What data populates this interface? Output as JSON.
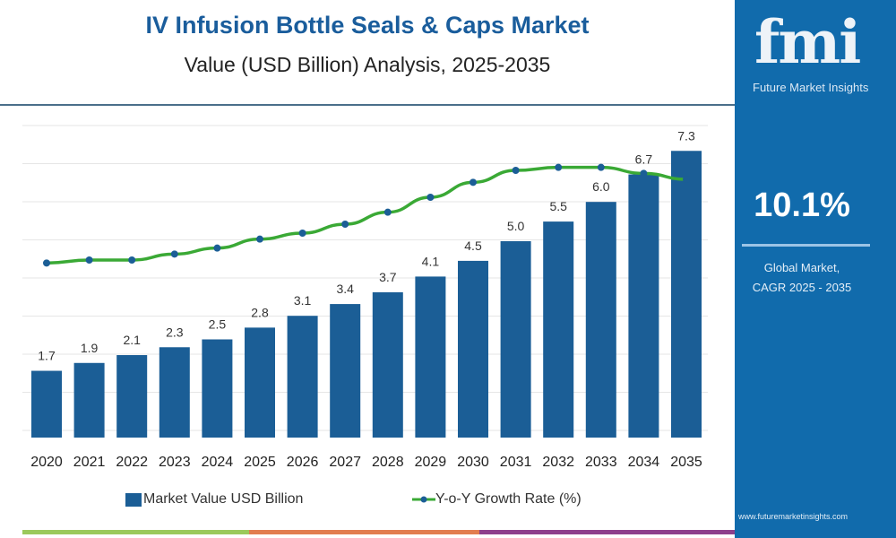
{
  "header": {
    "title": "IV Infusion Bottle Seals & Caps Market",
    "subtitle": "Value (USD Billion) Analysis, 2025-2035"
  },
  "sidebar": {
    "logo_text": "fmi",
    "logo_caption": "Future Market Insights",
    "cagr_value": "10.1%",
    "cagr_label_1": "Global Market,",
    "cagr_label_2": "CAGR 2025 - 2035",
    "url": "www.futuremarketinsights.com",
    "background": "#116bac"
  },
  "legend": {
    "bar": "Market Value USD Billion",
    "line": "Y-o-Y Growth Rate (%)"
  },
  "chart_data": {
    "type": "bar",
    "categories": [
      "2020",
      "2021",
      "2022",
      "2023",
      "2024",
      "2025",
      "2026",
      "2027",
      "2028",
      "2029",
      "2030",
      "2031",
      "2032",
      "2033",
      "2034",
      "2035"
    ],
    "series": [
      {
        "name": "Market Value USD Billion",
        "type": "bar",
        "color": "#1b5e96",
        "values": [
          1.7,
          1.9,
          2.1,
          2.3,
          2.5,
          2.8,
          3.1,
          3.4,
          3.7,
          4.1,
          4.5,
          5.0,
          5.5,
          6.0,
          6.7,
          7.3
        ],
        "labels": [
          "1.7",
          "1.9",
          "2.1",
          "2.3",
          "2.5",
          "2.8",
          "3.1",
          "3.4",
          "3.7",
          "4.1",
          "4.5",
          "5.0",
          "5.5",
          "6.0",
          "6.7",
          "7.3"
        ]
      },
      {
        "name": "Y-o-Y Growth Rate (%)",
        "type": "line",
        "color": "#3aa935",
        "marker_color": "#1b5e96",
        "values": [
          7.2,
          7.3,
          7.3,
          7.5,
          7.7,
          8.0,
          8.2,
          8.5,
          8.9,
          9.4,
          9.9,
          10.3,
          10.4,
          10.4,
          10.2,
          10.0
        ]
      }
    ],
    "grid": true,
    "legend_position": "bottom"
  }
}
